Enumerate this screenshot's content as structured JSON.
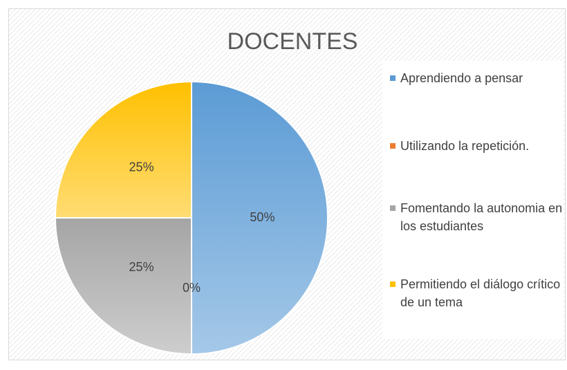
{
  "chart_data": {
    "type": "pie",
    "title": "DOCENTES",
    "categories": [
      "Aprendiendo a pensar",
      "Utilizando la repetición.",
      "Fomentando la autonomia en los estudiantes",
      "Permitiendo el diálogo crítico de un tema"
    ],
    "values": [
      50,
      0,
      25,
      25
    ],
    "value_labels": [
      "50%",
      "0%",
      "25%",
      "25%"
    ],
    "colors": [
      "#5b9bd5",
      "#ed7d31",
      "#a5a5a5",
      "#ffc000"
    ],
    "legend": "right"
  }
}
